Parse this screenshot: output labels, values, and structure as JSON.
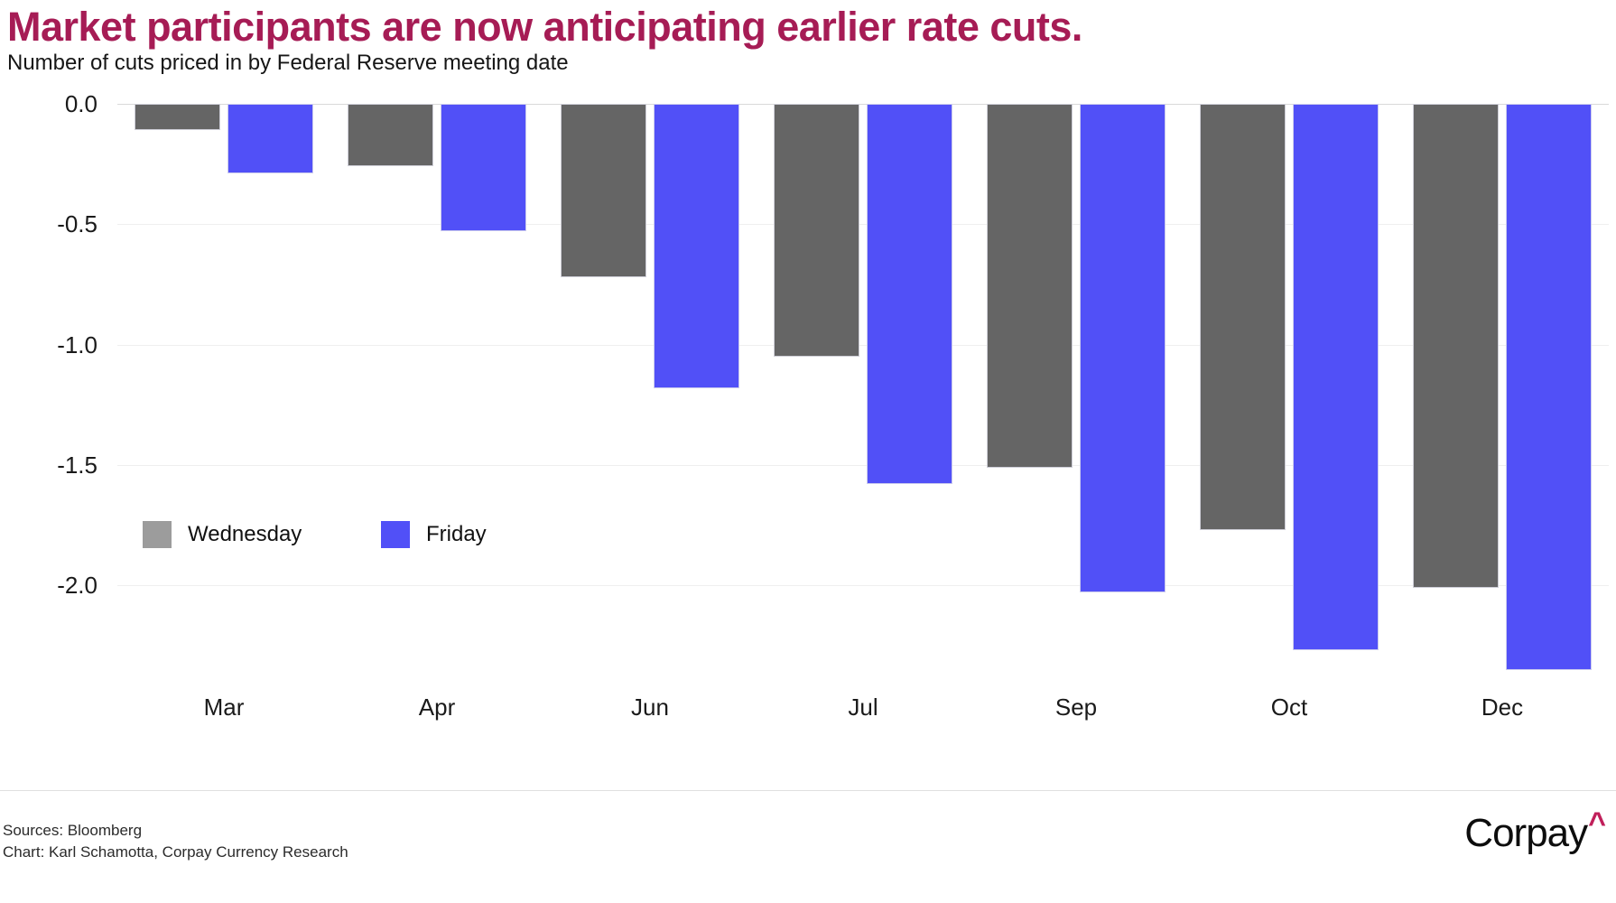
{
  "header": {
    "title": "Market participants are now anticipating earlier rate cuts.",
    "subtitle": "Number of cuts priced in by Federal Reserve meeting date"
  },
  "chart_data": {
    "type": "bar",
    "title": "Market participants are now anticipating earlier rate cuts.",
    "subtitle": "Number of cuts priced in by Federal Reserve meeting date",
    "categories": [
      "Mar",
      "Apr",
      "Jun",
      "Jul",
      "Sep",
      "Oct",
      "Dec"
    ],
    "series": [
      {
        "name": "Wednesday",
        "color": "#656565",
        "values": [
          -0.11,
          -0.26,
          -0.72,
          -1.05,
          -1.51,
          -1.77,
          -2.01
        ]
      },
      {
        "name": "Friday",
        "color": "#5150f7",
        "values": [
          -0.29,
          -0.53,
          -1.18,
          -1.58,
          -2.03,
          -2.27,
          -2.35
        ]
      }
    ],
    "ylabel": "",
    "xlabel": "",
    "ylim": [
      0,
      -2.4
    ],
    "yticks_labels": [
      "0.0",
      "-0.5",
      "-1.0",
      "-1.5",
      "-2.0"
    ],
    "ytick_values": [
      0,
      -0.5,
      -1.0,
      -1.5,
      -2.0
    ],
    "grid": true,
    "legend_position": "inside-lower-left"
  },
  "legend": {
    "items": [
      {
        "label": "Wednesday",
        "swatch_color": "#9c9c9c"
      },
      {
        "label": "Friday",
        "swatch_color": "#5150f7"
      }
    ]
  },
  "footer": {
    "sources": "Sources: Bloomberg",
    "credit": "Chart: Karl Schamotta, Corpay Currency Research",
    "logo_text": "Corpay",
    "logo_caret": "^"
  },
  "colors": {
    "title": "#a61c55",
    "bar_gray": "#656565",
    "bar_blue": "#5150f7",
    "legend_gray": "#9c9c9c",
    "gridline": "#efefef",
    "zero_line": "#d9d9d9",
    "logo_caret": "#c01f5a"
  }
}
